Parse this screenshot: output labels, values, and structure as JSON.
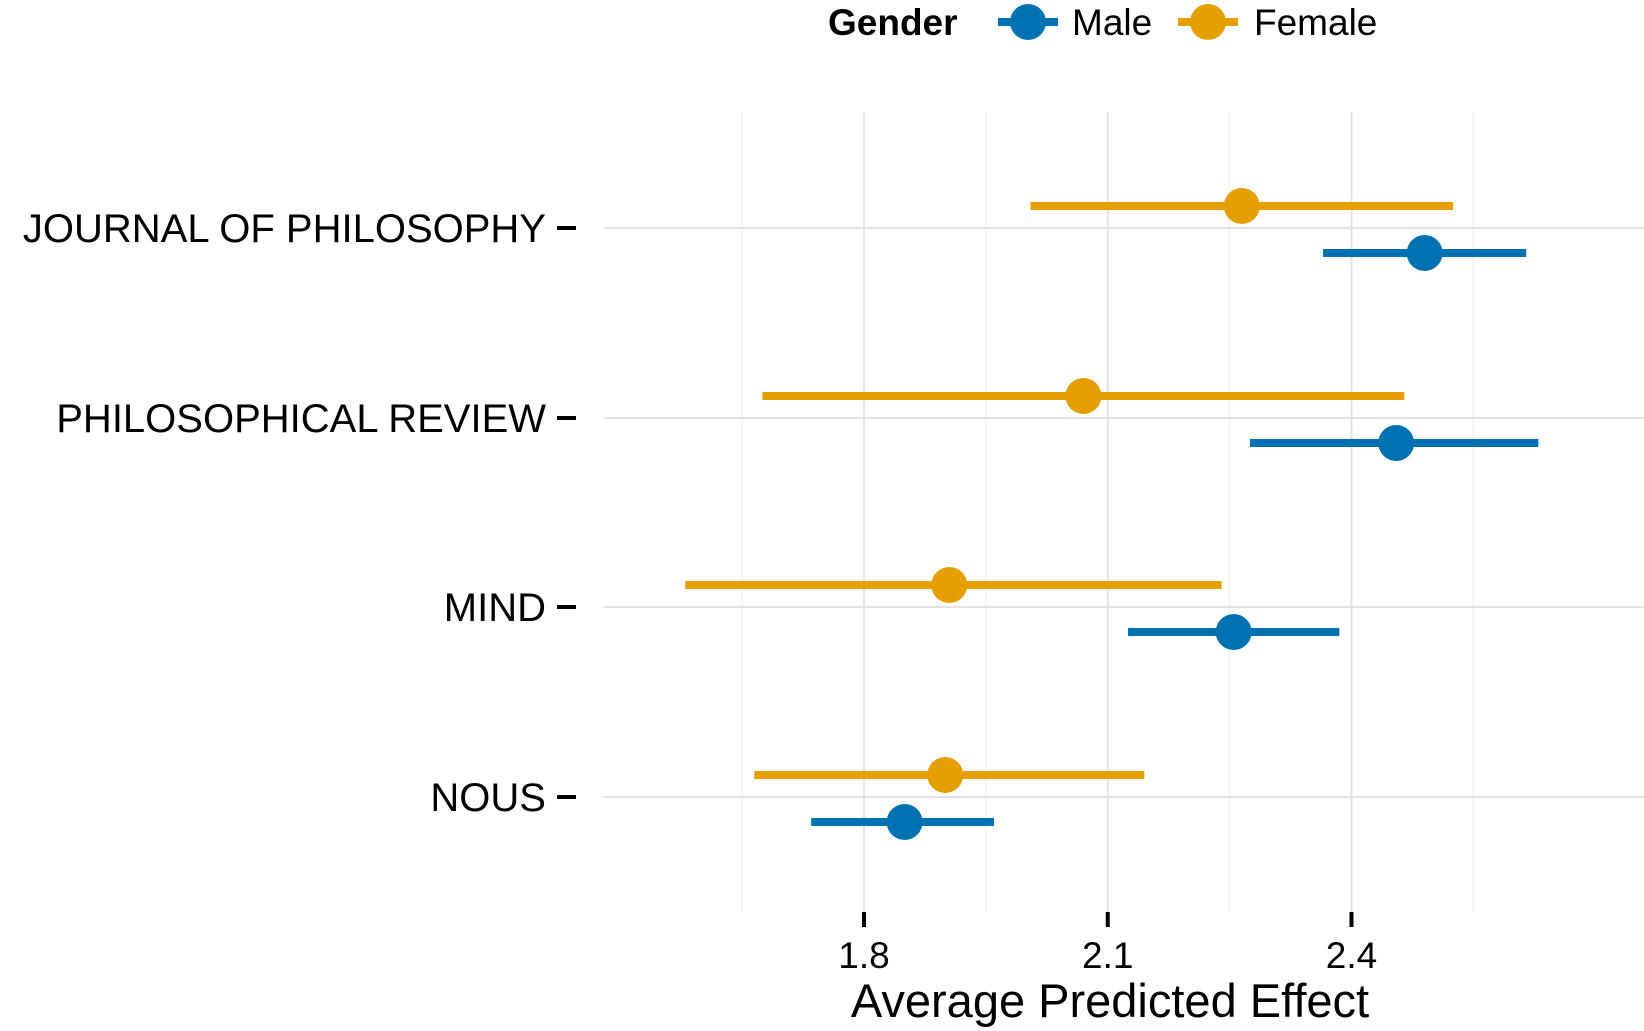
{
  "chart_data": {
    "type": "scatter",
    "subtype": "dot-and-whisker",
    "title": "",
    "xlabel": "Average Predicted Effect",
    "ylabel": "",
    "xlim": [
      1.48,
      2.76
    ],
    "xticks": [
      1.8,
      2.1,
      2.4
    ],
    "x_tick_labels": [
      "1.8",
      "2.1",
      "2.4"
    ],
    "grid": true,
    "legend": {
      "title": "Gender",
      "position": "top",
      "entries": [
        "Male",
        "Female"
      ]
    },
    "categories": [
      "JOURNAL OF PHILOSOPHY",
      "PHILOSOPHICAL REVIEW",
      "MIND",
      "NOUS"
    ],
    "series": [
      {
        "name": "Male",
        "color": "#0072B2",
        "values": [
          2.49,
          2.455,
          2.255,
          1.85
        ],
        "lower": [
          2.365,
          2.275,
          2.125,
          1.735
        ],
        "upper": [
          2.615,
          2.63,
          2.385,
          1.96
        ]
      },
      {
        "name": "Female",
        "color": "#E69F00",
        "values": [
          2.265,
          2.07,
          1.905,
          1.9
        ],
        "lower": [
          2.005,
          1.675,
          1.58,
          1.665
        ],
        "upper": [
          2.525,
          2.465,
          2.24,
          2.145
        ]
      }
    ]
  }
}
